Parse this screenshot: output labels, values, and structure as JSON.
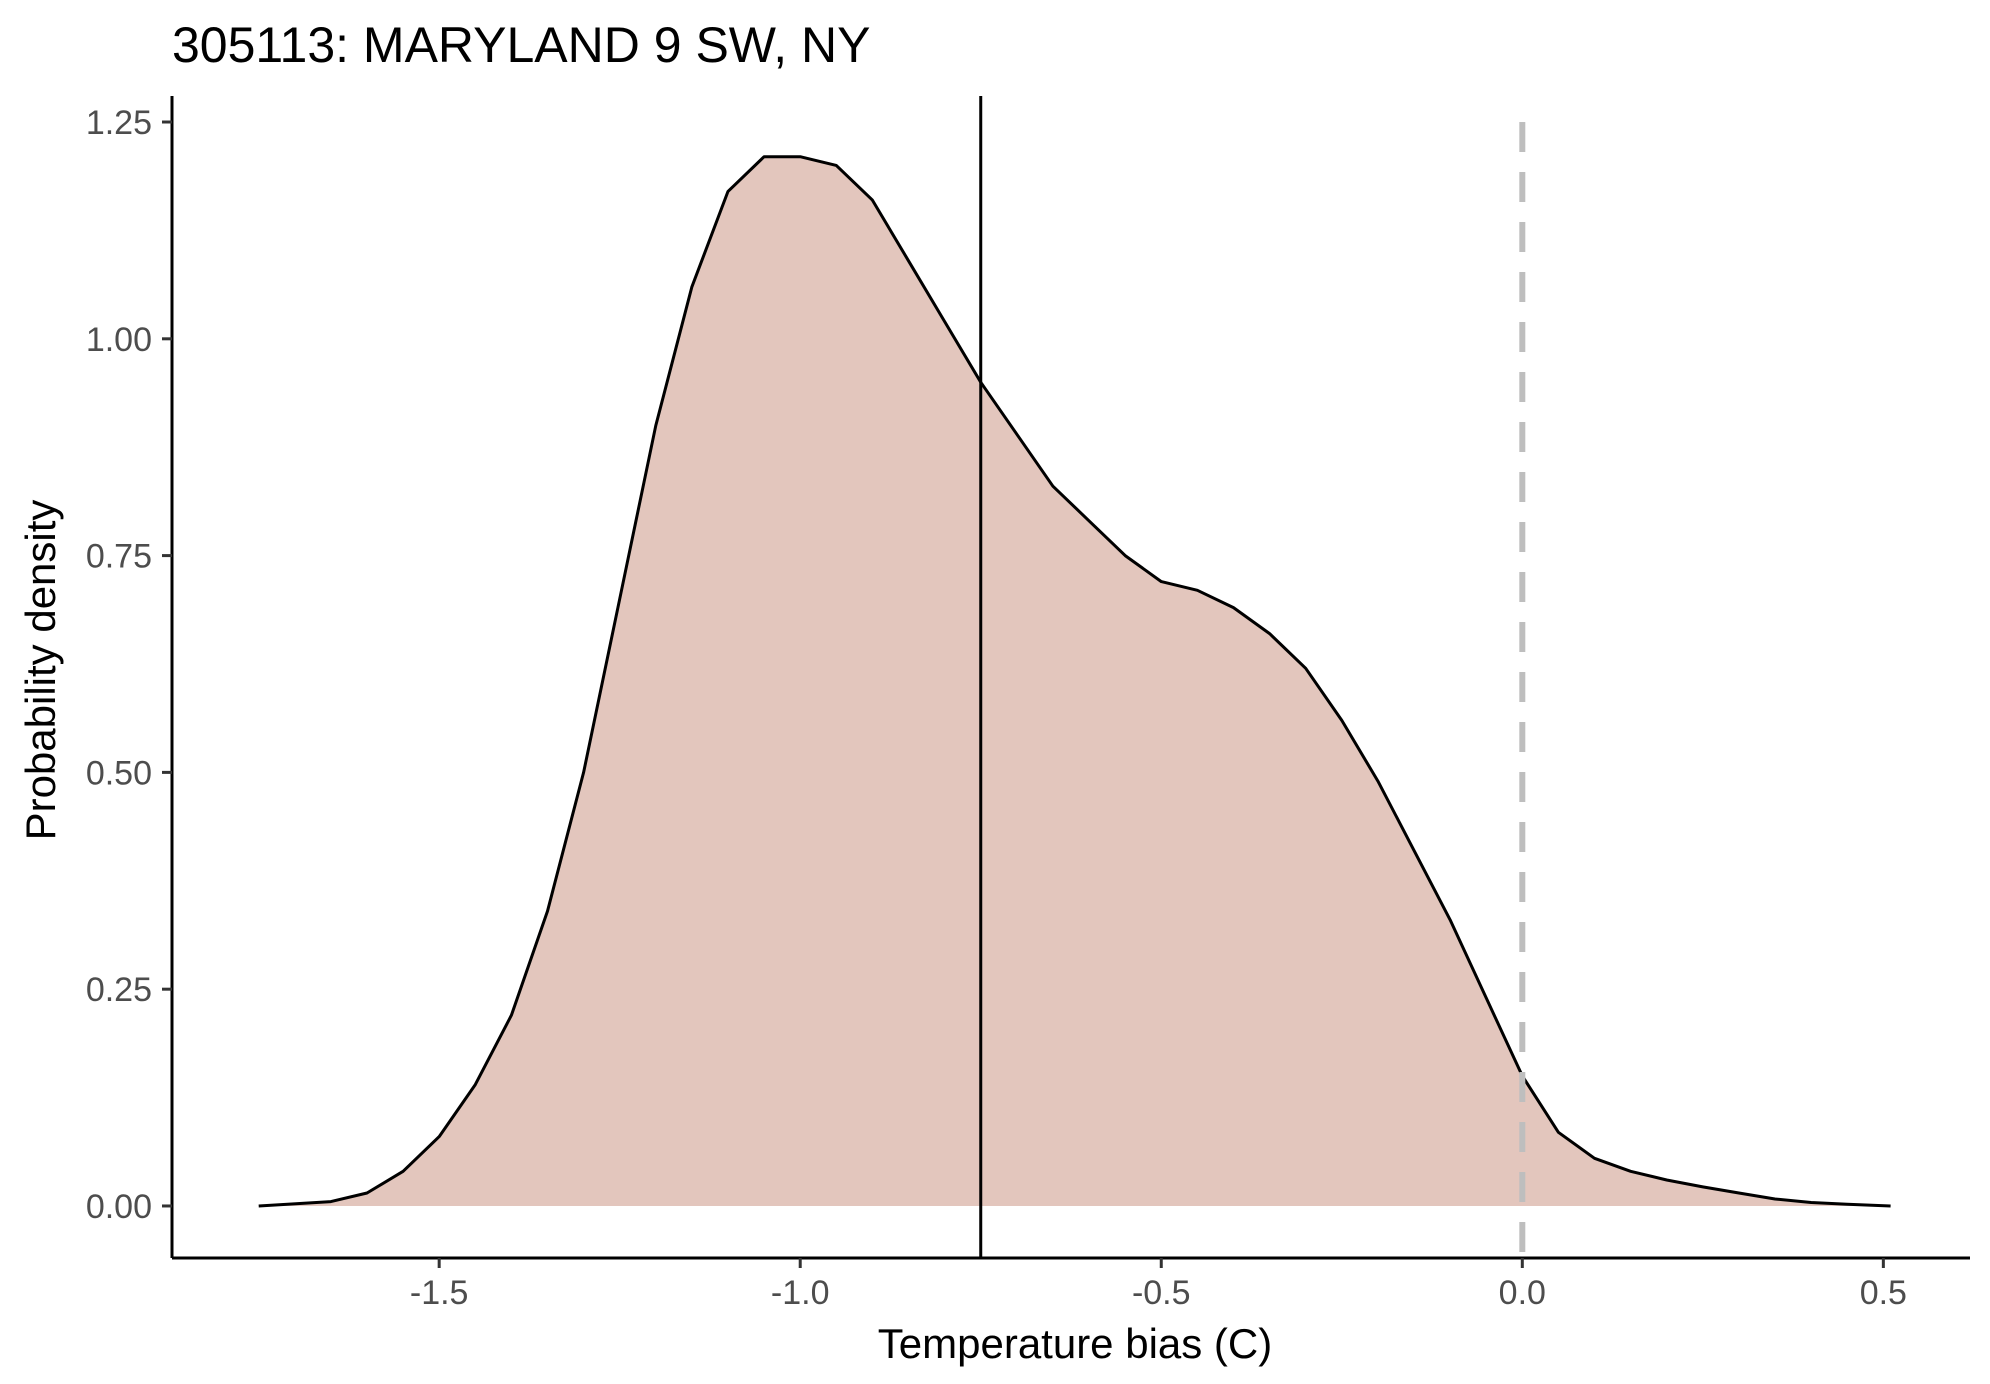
{
  "chart_data": {
    "type": "area",
    "title": "305113: MARYLAND 9 SW, NY",
    "xlabel": "Temperature bias (C)",
    "ylabel": "Probability density",
    "xlim": [
      -1.87,
      0.62
    ],
    "ylim": [
      -0.06,
      1.28
    ],
    "x_ticks": [
      -1.5,
      -1.0,
      -0.5,
      0.0,
      0.5
    ],
    "x_tick_labels": [
      "-1.5",
      "-1.0",
      "-0.5",
      "0.0",
      "0.5"
    ],
    "y_ticks": [
      0.0,
      0.25,
      0.5,
      0.75,
      1.0,
      1.25
    ],
    "y_tick_labels": [
      "0.00",
      "0.25",
      "0.50",
      "0.75",
      "1.00",
      "1.25"
    ],
    "series": [
      {
        "name": "density",
        "fill_color": "#e3c6bd",
        "line_color": "#000000",
        "x": [
          -1.75,
          -1.65,
          -1.6,
          -1.55,
          -1.5,
          -1.45,
          -1.4,
          -1.35,
          -1.3,
          -1.25,
          -1.2,
          -1.15,
          -1.1,
          -1.05,
          -1.0,
          -0.95,
          -0.9,
          -0.85,
          -0.8,
          -0.75,
          -0.7,
          -0.65,
          -0.6,
          -0.55,
          -0.5,
          -0.45,
          -0.4,
          -0.35,
          -0.3,
          -0.25,
          -0.2,
          -0.15,
          -0.1,
          -0.05,
          0.0,
          0.05,
          0.1,
          0.15,
          0.2,
          0.25,
          0.3,
          0.35,
          0.4,
          0.45,
          0.51
        ],
        "y": [
          0.0,
          0.005,
          0.015,
          0.04,
          0.08,
          0.14,
          0.22,
          0.34,
          0.5,
          0.7,
          0.9,
          1.06,
          1.17,
          1.21,
          1.21,
          1.2,
          1.16,
          1.09,
          1.02,
          0.95,
          0.89,
          0.83,
          0.79,
          0.75,
          0.72,
          0.71,
          0.69,
          0.66,
          0.62,
          0.56,
          0.49,
          0.41,
          0.33,
          0.24,
          0.15,
          0.085,
          0.055,
          0.04,
          0.03,
          0.022,
          0.015,
          0.008,
          0.004,
          0.002,
          0.0
        ]
      }
    ],
    "reference_lines": [
      {
        "name": "mean",
        "x": -0.75,
        "color": "#000000",
        "style": "solid"
      },
      {
        "name": "zero",
        "x": 0.0,
        "color": "#bebebe",
        "style": "dashed"
      }
    ]
  }
}
